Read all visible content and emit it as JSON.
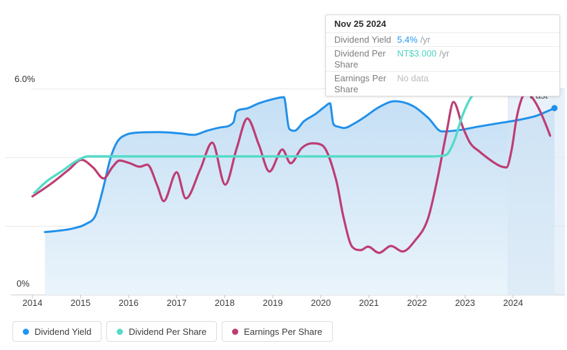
{
  "past_label": "Past",
  "tooltip": {
    "date": "Nov 25 2024",
    "rows": [
      {
        "label": "Dividend Yield",
        "value": "5.4%",
        "suffix": "/yr",
        "value_color": "#2196f3"
      },
      {
        "label": "Dividend Per Share",
        "value": "NT$3.000",
        "suffix": "/yr",
        "value_color": "#4fd5c3"
      },
      {
        "label": "Earnings Per Share",
        "value": "No data",
        "suffix": "",
        "value_color": "#b9bcbe"
      }
    ]
  },
  "legend": [
    {
      "label": "Dividend Yield",
      "color": "#2196f3"
    },
    {
      "label": "Dividend Per Share",
      "color": "#55dbc8"
    },
    {
      "label": "Earnings Per Share",
      "color": "#bd3d74"
    }
  ],
  "colors": {
    "yield_line": "#2090ea",
    "dps_line": "#55dbc8",
    "eps_line": "#bd3d74",
    "area_top": "#c3def4",
    "area_bottom": "#eaf4fb",
    "gridline": "#e7e7e7",
    "axis_line": "#c9c9c9",
    "tick": "#c4c4c4",
    "past_band": "rgba(213,230,244,0.55)",
    "past_band_edge": "#d8e5f1"
  },
  "chart_data": {
    "type": "line",
    "title": "",
    "x": {
      "unit": "year",
      "min": 2014,
      "max": 2024.95,
      "ticks": [
        2014,
        2015,
        2016,
        2017,
        2018,
        2019,
        2020,
        2021,
        2022,
        2023,
        2024
      ]
    },
    "y_percent": {
      "min": 0,
      "max": 6,
      "top_label": "6.0%",
      "bottom_label": "0%",
      "gridline_step": 2
    },
    "y_currency": {
      "unit": "NT$",
      "min": 0,
      "max": 3
    },
    "past_band_start": 2023.9,
    "legend_position": "bottom",
    "grid": true,
    "series": [
      {
        "name": "Dividend Yield",
        "unit": "%",
        "scale": "pct",
        "area": true,
        "end_dot": true,
        "points": [
          [
            2014.26,
            1.83
          ],
          [
            2014.55,
            1.87
          ],
          [
            2014.83,
            1.93
          ],
          [
            2015.12,
            2.07
          ],
          [
            2015.31,
            2.31
          ],
          [
            2015.41,
            2.77
          ],
          [
            2015.51,
            3.33
          ],
          [
            2015.62,
            3.97
          ],
          [
            2015.77,
            4.47
          ],
          [
            2015.94,
            4.66
          ],
          [
            2016.13,
            4.72
          ],
          [
            2016.63,
            4.74
          ],
          [
            2017.09,
            4.7
          ],
          [
            2017.35,
            4.66
          ],
          [
            2017.63,
            4.78
          ],
          [
            2017.92,
            4.88
          ],
          [
            2018.18,
            5.02
          ],
          [
            2018.24,
            5.34
          ],
          [
            2018.43,
            5.42
          ],
          [
            2018.71,
            5.58
          ],
          [
            2019.0,
            5.7
          ],
          [
            2019.23,
            5.76
          ],
          [
            2019.34,
            4.84
          ],
          [
            2019.45,
            4.78
          ],
          [
            2019.65,
            5.06
          ],
          [
            2019.88,
            5.26
          ],
          [
            2020.08,
            5.48
          ],
          [
            2020.19,
            5.58
          ],
          [
            2020.26,
            4.98
          ],
          [
            2020.36,
            4.9
          ],
          [
            2020.48,
            4.86
          ],
          [
            2020.68,
            4.98
          ],
          [
            2020.91,
            5.18
          ],
          [
            2021.2,
            5.46
          ],
          [
            2021.54,
            5.64
          ],
          [
            2021.92,
            5.5
          ],
          [
            2022.23,
            5.16
          ],
          [
            2022.52,
            4.76
          ],
          [
            2022.88,
            4.8
          ],
          [
            2023.27,
            4.9
          ],
          [
            2023.7,
            5.0
          ],
          [
            2024.13,
            5.1
          ],
          [
            2024.49,
            5.22
          ],
          [
            2024.7,
            5.34
          ],
          [
            2024.86,
            5.44
          ]
        ]
      },
      {
        "name": "Dividend Per Share",
        "unit": "NT$",
        "scale": "nt",
        "area": false,
        "end_dot": true,
        "points": [
          [
            2014.04,
            1.47
          ],
          [
            2014.3,
            1.64
          ],
          [
            2014.62,
            1.79
          ],
          [
            2014.93,
            1.94
          ],
          [
            2015.16,
            2.0
          ],
          [
            2015.6,
            2.0
          ],
          [
            2016.5,
            2.0
          ],
          [
            2017.5,
            2.0
          ],
          [
            2018.5,
            2.0
          ],
          [
            2019.5,
            2.0
          ],
          [
            2020.5,
            2.0
          ],
          [
            2021.5,
            2.0
          ],
          [
            2022.3,
            2.0
          ],
          [
            2022.6,
            2.02
          ],
          [
            2022.76,
            2.2
          ],
          [
            2022.95,
            2.6
          ],
          [
            2023.14,
            2.87
          ],
          [
            2023.38,
            2.98
          ],
          [
            2023.53,
            3.0
          ],
          [
            2024.0,
            3.0
          ],
          [
            2024.86,
            3.0
          ]
        ]
      },
      {
        "name": "Earnings Per Share",
        "unit": "NT$",
        "scale": "nt",
        "area": false,
        "end_dot": false,
        "points": [
          [
            2014.0,
            1.42
          ],
          [
            2014.4,
            1.61
          ],
          [
            2014.76,
            1.81
          ],
          [
            2015.02,
            1.95
          ],
          [
            2015.26,
            1.84
          ],
          [
            2015.48,
            1.68
          ],
          [
            2015.67,
            1.85
          ],
          [
            2015.81,
            1.94
          ],
          [
            2016.03,
            1.9
          ],
          [
            2016.23,
            1.85
          ],
          [
            2016.39,
            1.88
          ],
          [
            2016.6,
            1.57
          ],
          [
            2016.73,
            1.35
          ],
          [
            2017.0,
            1.77
          ],
          [
            2017.19,
            1.39
          ],
          [
            2017.49,
            1.81
          ],
          [
            2017.74,
            2.2
          ],
          [
            2018.01,
            1.59
          ],
          [
            2018.25,
            2.12
          ],
          [
            2018.47,
            2.55
          ],
          [
            2018.71,
            2.17
          ],
          [
            2018.93,
            1.78
          ],
          [
            2019.2,
            2.1
          ],
          [
            2019.37,
            1.9
          ],
          [
            2019.6,
            2.12
          ],
          [
            2019.82,
            2.19
          ],
          [
            2020.03,
            2.16
          ],
          [
            2020.32,
            1.65
          ],
          [
            2020.47,
            1.12
          ],
          [
            2020.65,
            0.69
          ],
          [
            2020.83,
            0.64
          ],
          [
            2020.98,
            0.69
          ],
          [
            2021.21,
            0.6
          ],
          [
            2021.46,
            0.7
          ],
          [
            2021.7,
            0.62
          ],
          [
            2021.95,
            0.77
          ],
          [
            2022.23,
            1.1
          ],
          [
            2022.43,
            1.69
          ],
          [
            2022.62,
            2.37
          ],
          [
            2022.76,
            2.79
          ],
          [
            2022.95,
            2.43
          ],
          [
            2023.11,
            2.19
          ],
          [
            2023.3,
            2.07
          ],
          [
            2023.54,
            1.94
          ],
          [
            2023.73,
            1.86
          ],
          [
            2023.86,
            1.84
          ],
          [
            2023.97,
            2.1
          ],
          [
            2024.07,
            2.55
          ],
          [
            2024.18,
            2.84
          ],
          [
            2024.27,
            2.92
          ],
          [
            2024.4,
            2.85
          ],
          [
            2024.53,
            2.7
          ],
          [
            2024.67,
            2.48
          ],
          [
            2024.77,
            2.3
          ]
        ]
      }
    ]
  }
}
